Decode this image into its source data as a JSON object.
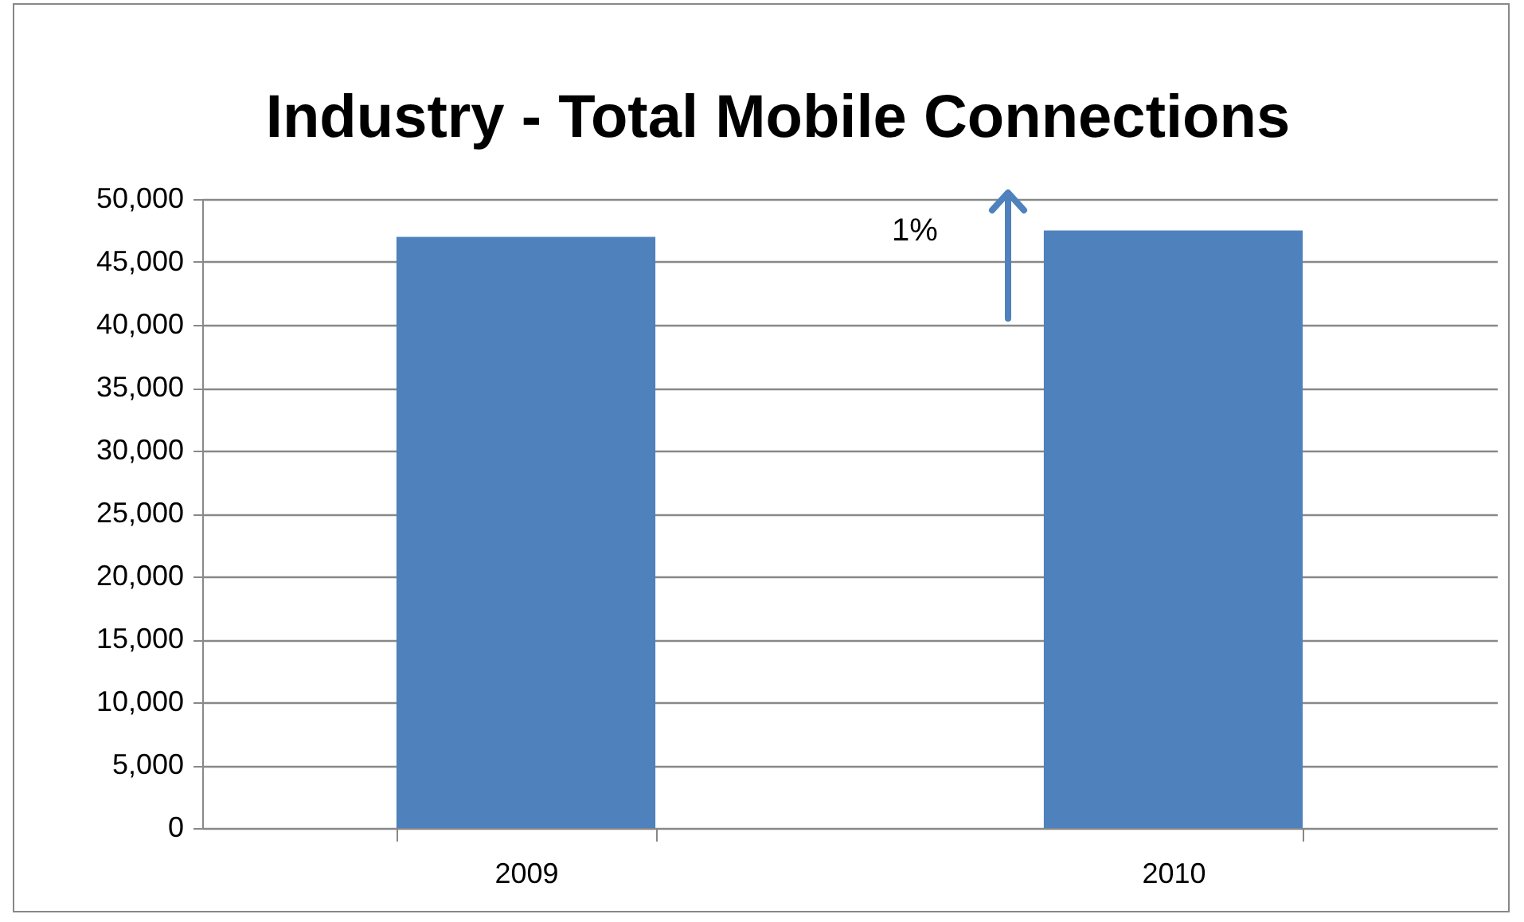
{
  "chart_data": {
    "type": "bar",
    "title": "Industry - Total Mobile Connections",
    "categories": [
      "2009",
      "2010"
    ],
    "values": [
      47000,
      47500
    ],
    "color": "#4f81bd",
    "ylim": [
      0,
      50000
    ],
    "yticks": [
      {
        "value": 0,
        "label": "0"
      },
      {
        "value": 5000,
        "label": "5,000"
      },
      {
        "value": 10000,
        "label": "10,000"
      },
      {
        "value": 15000,
        "label": "15,000"
      },
      {
        "value": 20000,
        "label": "20,000"
      },
      {
        "value": 25000,
        "label": "25,000"
      },
      {
        "value": 30000,
        "label": "30,000"
      },
      {
        "value": 35000,
        "label": "35,000"
      },
      {
        "value": 40000,
        "label": "40,000"
      },
      {
        "value": 45000,
        "label": "45,000"
      },
      {
        "value": 50000,
        "label": "50,000"
      }
    ],
    "grid": "y",
    "annotations": [
      "1%"
    ]
  }
}
